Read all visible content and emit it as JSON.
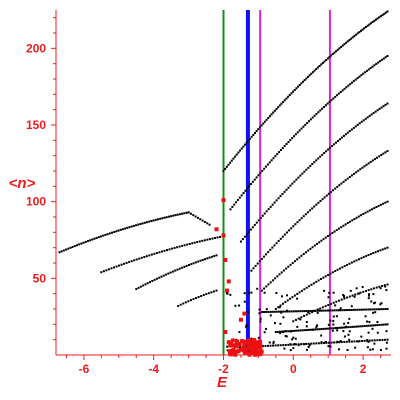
{
  "chart_data": {
    "type": "scatter",
    "title": "",
    "xlabel": "E",
    "ylabel": "<n>",
    "xlim": [
      -6.8,
      2.8
    ],
    "ylim": [
      0,
      225
    ],
    "xticks": [
      -6,
      -4,
      -2,
      0,
      2
    ],
    "yticks": [
      50,
      100,
      150,
      200
    ],
    "grid": false,
    "axis_color": "#ee1c1c",
    "vertical_lines": [
      {
        "x": -2.0,
        "color": "#1a8a1a"
      },
      {
        "x": -1.3,
        "color": "#1010ee"
      },
      {
        "x": -0.95,
        "color": "#dd22dd"
      },
      {
        "x": 1.05,
        "color": "#dd22dd"
      }
    ],
    "series": [
      {
        "marker_color": "#000000",
        "curves": [
          {
            "x0": -6.7,
            "y0": 67,
            "x1": -3.0,
            "y1": 93,
            "n": 60,
            "curv": -0.35
          },
          {
            "x0": -3.0,
            "y0": 93,
            "x1": -2.4,
            "y1": 85,
            "n": 10,
            "curv": 0
          },
          {
            "x0": -5.5,
            "y0": 54,
            "x1": -2.1,
            "y1": 77,
            "n": 48,
            "curv": -0.3
          },
          {
            "x0": -4.5,
            "y0": 43,
            "x1": -2.2,
            "y1": 65,
            "n": 36,
            "curv": -0.25
          },
          {
            "x0": -3.3,
            "y0": 32,
            "x1": -2.2,
            "y1": 42,
            "n": 16,
            "curv": -0.2
          },
          {
            "x0": -2.0,
            "y0": 120,
            "x1": 2.7,
            "y1": 224,
            "n": 100,
            "curv": -0.3
          },
          {
            "x0": -1.8,
            "y0": 95,
            "x1": 2.7,
            "y1": 195,
            "n": 85,
            "curv": -0.3
          },
          {
            "x0": -1.5,
            "y0": 74,
            "x1": 2.7,
            "y1": 164,
            "n": 75,
            "curv": -0.3
          },
          {
            "x0": -1.2,
            "y0": 55,
            "x1": 2.7,
            "y1": 133,
            "n": 66,
            "curv": -0.3
          },
          {
            "x0": -0.9,
            "y0": 42,
            "x1": 2.7,
            "y1": 100,
            "n": 58,
            "curv": -0.35
          },
          {
            "x0": -0.5,
            "y0": 30,
            "x1": 2.7,
            "y1": 70,
            "n": 48,
            "curv": -0.35
          },
          {
            "x0": 0.0,
            "y0": 22,
            "x1": 2.7,
            "y1": 46,
            "n": 36,
            "curv": -0.3
          },
          {
            "x0": -0.9,
            "y0": 28,
            "x1": 2.7,
            "y1": 30,
            "n": 60,
            "curv": 0.1
          },
          {
            "x0": -0.5,
            "y0": 15,
            "x1": 2.7,
            "y1": 20,
            "n": 55,
            "curv": 0.1
          },
          {
            "x0": -1.6,
            "y0": 5,
            "x1": 2.7,
            "y1": 10,
            "n": 60,
            "curv": 0.05
          }
        ],
        "scatter_region": {
          "x_min": -1.9,
          "x_max": 2.7,
          "y_min": 3,
          "y_max": 45,
          "n": 160
        }
      },
      {
        "marker_color": "#ee1010",
        "points": [
          {
            "x": -2.0,
            "y": 101
          },
          {
            "x": -2.0,
            "y": 78
          },
          {
            "x": -2.2,
            "y": 82
          },
          {
            "x": -1.95,
            "y": 62
          },
          {
            "x": -1.85,
            "y": 48
          },
          {
            "x": -1.9,
            "y": 42
          },
          {
            "x": -1.95,
            "y": 15
          },
          {
            "x": -1.5,
            "y": 23
          },
          {
            "x": -1.4,
            "y": 27
          }
        ],
        "cluster": {
          "x_min": -1.85,
          "x_max": -0.9,
          "y_min": 0,
          "y_max": 10,
          "n": 90
        }
      }
    ]
  }
}
